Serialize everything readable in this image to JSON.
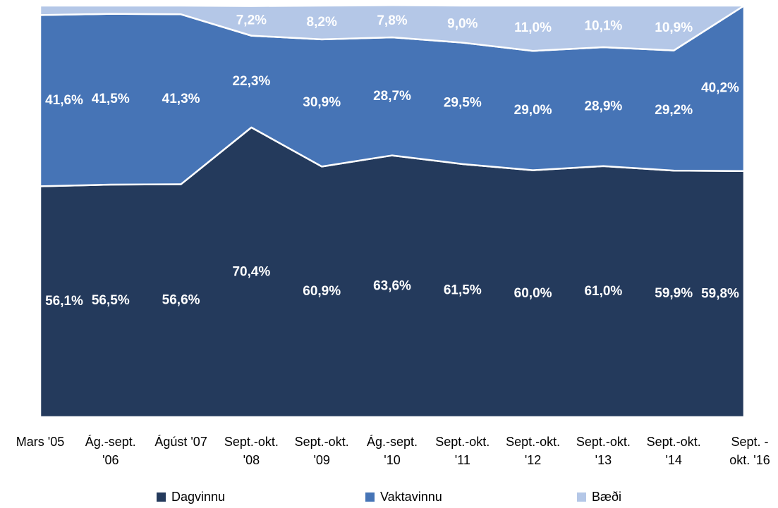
{
  "chart_data": {
    "type": "stacked_area",
    "categories": [
      "Mars '05",
      "Ág.-sept.\n'06",
      "Ágúst '07",
      "Sept.-okt.\n'08",
      "Sept.-okt.\n'09",
      "Ág.-sept.\n'10",
      "Sept.-okt.\n'11",
      "Sept.-okt.\n'12",
      "Sept.-okt.\n'13",
      "Sept.-okt.\n'14",
      "Sept. -\nokt. '16"
    ],
    "ylim": [
      0,
      100
    ],
    "series": [
      {
        "name": "Dagvinnu",
        "color": "#243a5c",
        "values": [
          56.1,
          56.5,
          56.6,
          70.4,
          60.9,
          63.6,
          61.5,
          60.0,
          61.0,
          59.9,
          59.8
        ],
        "value_labels": [
          "56,1%",
          "56,5%",
          "56,6%",
          "70,4%",
          "60,9%",
          "63,6%",
          "61,5%",
          "60,0%",
          "61,0%",
          "59,9%",
          "59,8%"
        ]
      },
      {
        "name": "Vaktavinnu",
        "color": "#4674b6",
        "values": [
          41.6,
          41.5,
          41.3,
          22.3,
          30.9,
          28.7,
          29.5,
          29.0,
          28.9,
          29.2,
          40.2
        ],
        "value_labels": [
          "41,6%",
          "41,5%",
          "41,3%",
          "22,3%",
          "30,9%",
          "28,7%",
          "29,5%",
          "29,0%",
          "28,9%",
          "29,2%",
          "40,2%"
        ]
      },
      {
        "name": "Bæði",
        "color": "#b4c7e7",
        "values": [
          2.3,
          2.0,
          2.1,
          7.2,
          8.2,
          7.8,
          9.0,
          11.0,
          10.1,
          10.9,
          0
        ],
        "value_labels": [
          null,
          null,
          null,
          "7,2%",
          "8,2%",
          "7,8%",
          "9,0%",
          "11,0%",
          "10,1%",
          "10,9%",
          null
        ]
      }
    ]
  }
}
